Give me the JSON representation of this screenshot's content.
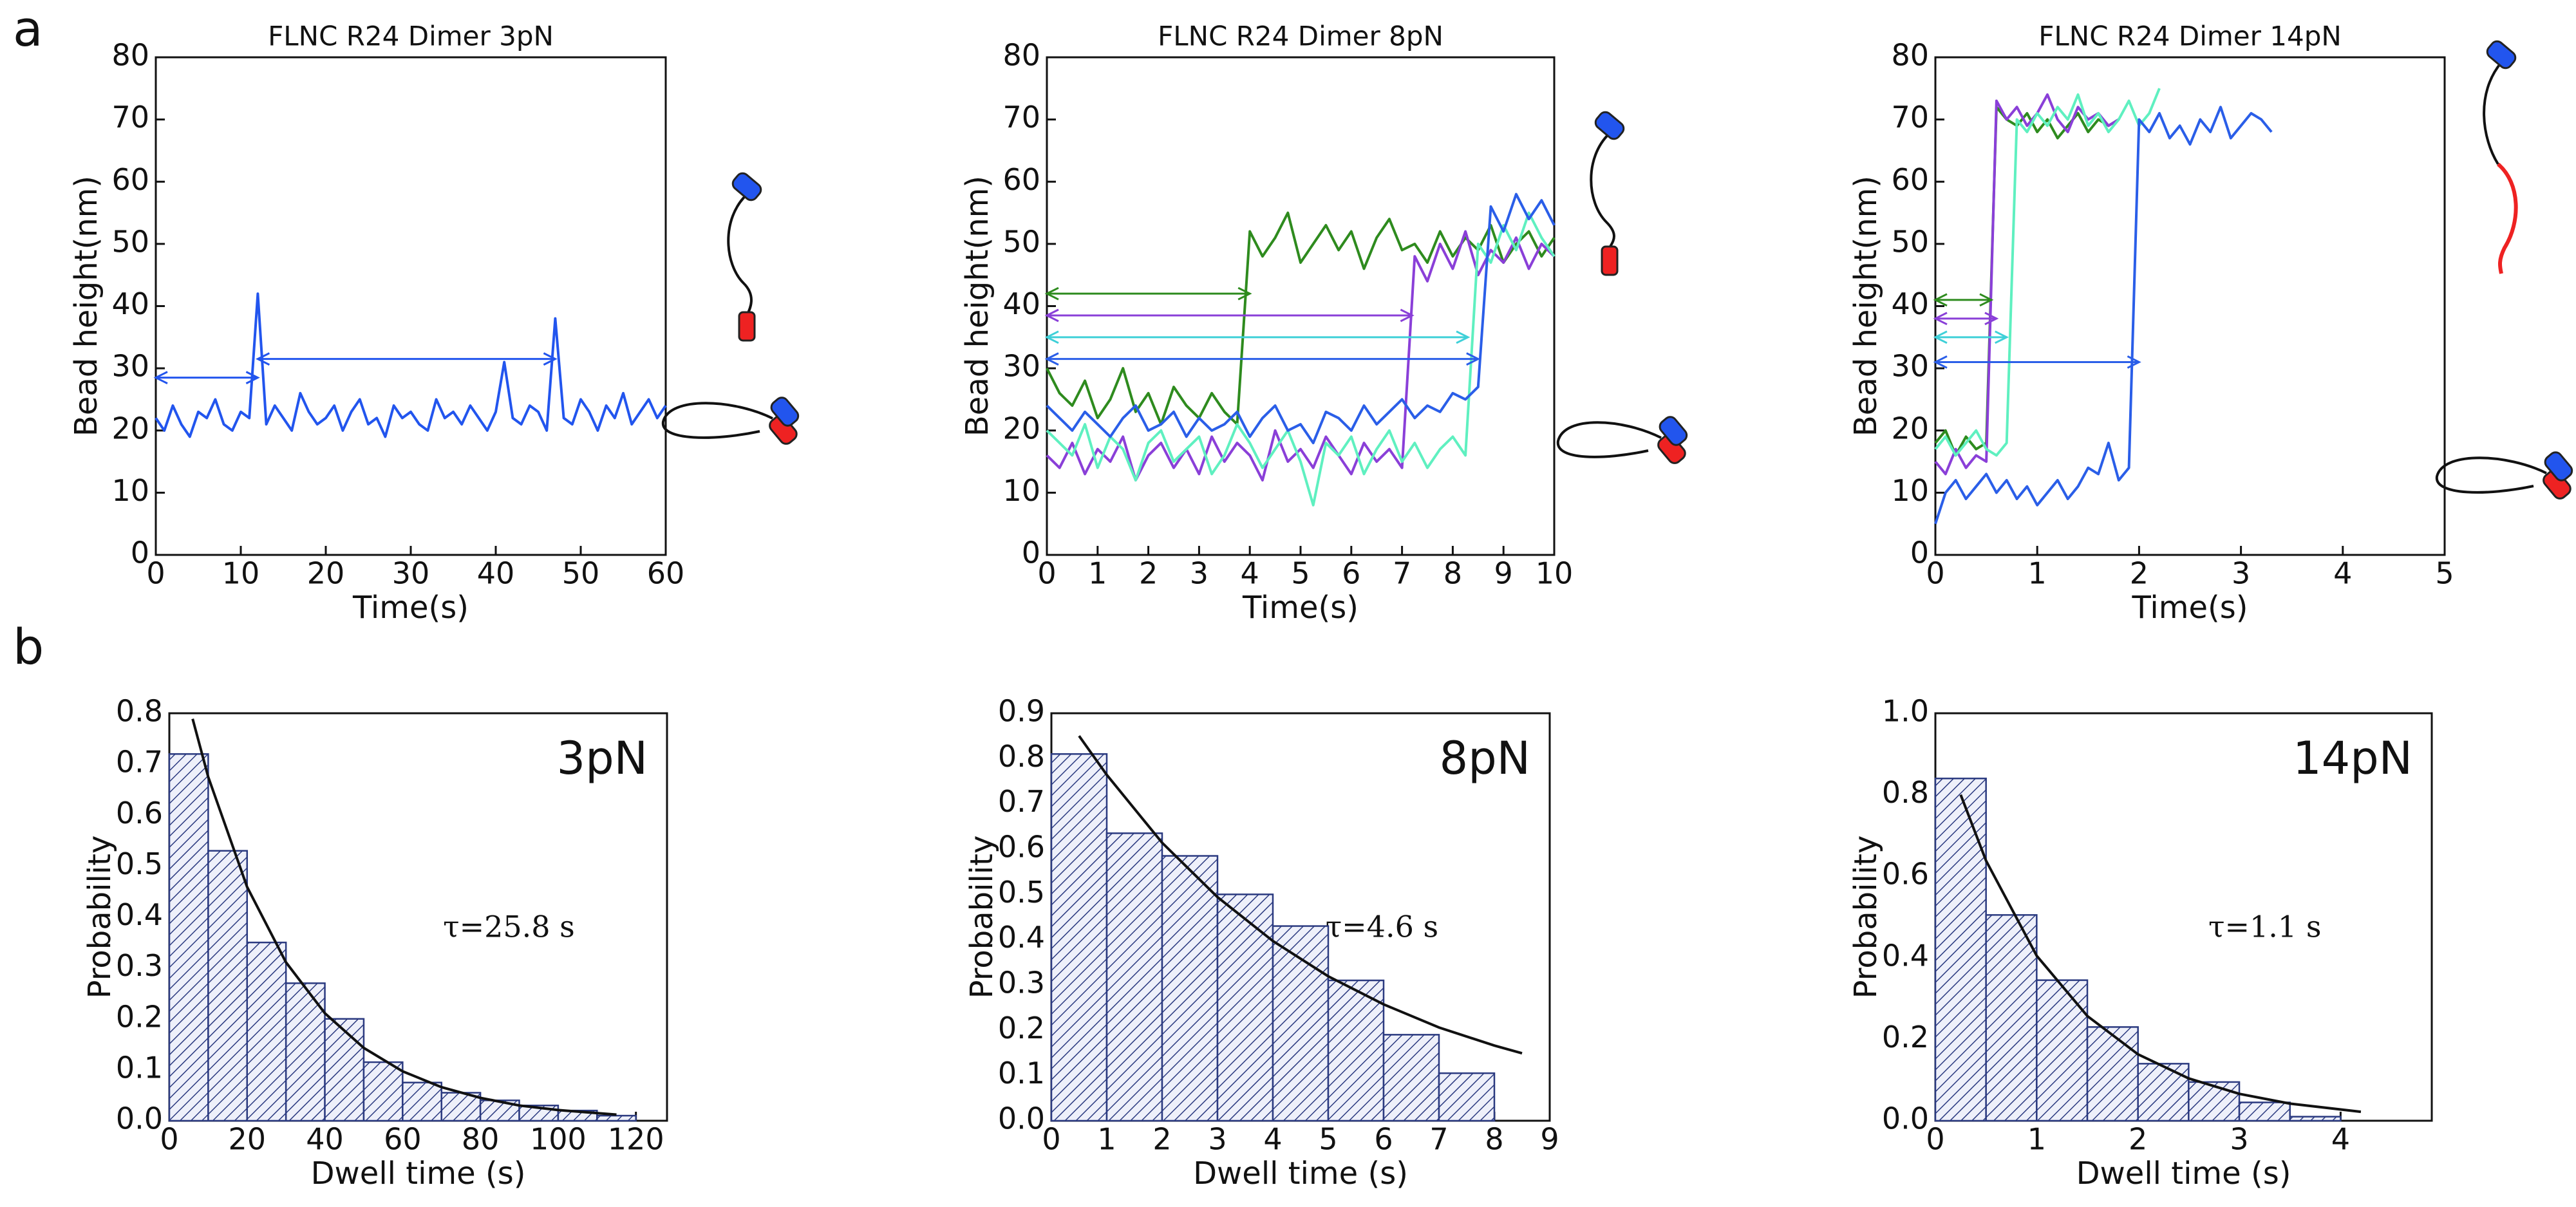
{
  "panel_labels": [
    "a",
    "b"
  ],
  "chart_data": [
    {
      "type": "line",
      "title": "FLNC R24 Dimer 3pN",
      "x_label": "Time(s)",
      "y_label": "Bead height(nm)",
      "xlim": [
        0,
        60
      ],
      "ylim": [
        0,
        80
      ],
      "xticks": [
        0,
        10,
        20,
        30,
        40,
        50,
        60
      ],
      "yticks": [
        0,
        10,
        20,
        30,
        40,
        50,
        60,
        70,
        80
      ],
      "x": [
        0,
        1,
        2,
        3,
        4,
        5,
        6,
        7,
        8,
        9,
        10,
        11,
        12,
        13,
        14,
        15,
        16,
        17,
        18,
        19,
        20,
        21,
        22,
        23,
        24,
        25,
        26,
        27,
        28,
        29,
        30,
        31,
        32,
        33,
        34,
        35,
        36,
        37,
        38,
        39,
        40,
        41,
        42,
        43,
        44,
        45,
        46,
        47,
        48,
        49,
        50,
        51,
        52,
        53,
        54,
        55,
        56,
        57,
        58,
        59,
        60
      ],
      "series": [
        {
          "color": "#2255ee",
          "values": [
            22,
            20,
            24,
            21,
            19,
            23,
            22,
            25,
            21,
            20,
            23,
            22,
            42,
            21,
            24,
            22,
            20,
            26,
            23,
            21,
            22,
            24,
            20,
            23,
            25,
            21,
            22,
            19,
            24,
            22,
            23,
            21,
            20,
            25,
            22,
            23,
            21,
            24,
            22,
            20,
            23,
            31,
            22,
            21,
            24,
            23,
            20,
            38,
            22,
            21,
            25,
            23,
            20,
            24,
            22,
            26,
            21,
            23,
            25,
            22,
            24
          ]
        }
      ],
      "arrows": [
        {
          "x": [
            0,
            12
          ],
          "y": 28.5,
          "color": "#2255ee"
        },
        {
          "x": [
            12,
            47
          ],
          "y": 31.5,
          "color": "#2255ee"
        }
      ]
    },
    {
      "type": "line",
      "title": "FLNC R24 Dimer 8pN",
      "x_label": "Time(s)",
      "y_label": "Bead height(nm)",
      "xlim": [
        0,
        10
      ],
      "ylim": [
        0,
        80
      ],
      "xticks": [
        0,
        1,
        2,
        3,
        4,
        5,
        6,
        7,
        8,
        9,
        10
      ],
      "yticks": [
        0,
        10,
        20,
        30,
        40,
        50,
        60,
        70,
        80
      ],
      "x": [
        0,
        0.25,
        0.5,
        0.75,
        1,
        1.25,
        1.5,
        1.75,
        2,
        2.25,
        2.5,
        2.75,
        3,
        3.25,
        3.5,
        3.75,
        4,
        4.25,
        4.5,
        4.75,
        5,
        5.25,
        5.5,
        5.75,
        6,
        6.25,
        6.5,
        6.75,
        7,
        7.25,
        7.5,
        7.75,
        8,
        8.25,
        8.5,
        8.75,
        9,
        9.25,
        9.5,
        9.75,
        10
      ],
      "series": [
        {
          "color": "#2e8b1e",
          "values": [
            30,
            26,
            24,
            28,
            22,
            25,
            30,
            23,
            26,
            21,
            27,
            24,
            22,
            26,
            23,
            21,
            52,
            48,
            51,
            55,
            47,
            50,
            53,
            49,
            52,
            46,
            51,
            54,
            49,
            50,
            47,
            52,
            48,
            51,
            49,
            53,
            47,
            50,
            52,
            48,
            51
          ]
        },
        {
          "color": "#8a3fd8",
          "values": [
            16,
            14,
            18,
            13,
            17,
            15,
            19,
            12,
            16,
            18,
            14,
            17,
            13,
            19,
            15,
            18,
            16,
            12,
            20,
            15,
            17,
            14,
            19,
            16,
            13,
            18,
            15,
            17,
            14,
            48,
            44,
            50,
            46,
            52,
            45,
            49,
            47,
            51,
            46,
            50,
            48
          ]
        },
        {
          "color": "#5ff0c0",
          "values": [
            20,
            18,
            16,
            21,
            14,
            19,
            17,
            12,
            18,
            20,
            15,
            17,
            19,
            13,
            16,
            21,
            18,
            14,
            17,
            20,
            15,
            8,
            18,
            16,
            19,
            13,
            17,
            20,
            15,
            18,
            14,
            17,
            19,
            16,
            50,
            47,
            53,
            49,
            55,
            51,
            48
          ]
        },
        {
          "color": "#2a5ee8",
          "values": [
            24,
            22,
            20,
            23,
            21,
            19,
            22,
            24,
            20,
            21,
            23,
            19,
            22,
            20,
            21,
            23,
            19,
            22,
            24,
            20,
            21,
            18,
            23,
            22,
            20,
            24,
            21,
            23,
            25,
            22,
            24,
            23,
            26,
            25,
            27,
            56,
            52,
            58,
            54,
            57,
            53
          ]
        }
      ],
      "arrows": [
        {
          "x": [
            0,
            4.0
          ],
          "y": 42,
          "color": "#2e8b1e"
        },
        {
          "x": [
            0,
            7.2
          ],
          "y": 38.5,
          "color": "#8a3fd8"
        },
        {
          "x": [
            0,
            8.3
          ],
          "y": 35,
          "color": "#3fd0d8"
        },
        {
          "x": [
            0,
            8.5
          ],
          "y": 31.5,
          "color": "#2a5ee8"
        }
      ]
    },
    {
      "type": "line",
      "title": "FLNC R24 Dimer 14pN",
      "x_label": "Time(s)",
      "y_label": "Bead height(nm)",
      "xlim": [
        0,
        5
      ],
      "ylim": [
        0,
        80
      ],
      "xticks": [
        0,
        1,
        2,
        3,
        4,
        5
      ],
      "yticks": [
        0,
        10,
        20,
        30,
        40,
        50,
        60,
        70,
        80
      ],
      "x": [
        0,
        0.1,
        0.2,
        0.3,
        0.4,
        0.5,
        0.6,
        0.7,
        0.8,
        0.9,
        1,
        1.1,
        1.2,
        1.3,
        1.4,
        1.5,
        1.6,
        1.7,
        1.8,
        1.9,
        2,
        2.1,
        2.2,
        2.3,
        2.4,
        2.5,
        2.6,
        2.7,
        2.8,
        2.9,
        3,
        3.1,
        3.2,
        3.3
      ],
      "series": [
        {
          "color": "#2e8b1e",
          "values": [
            18,
            20,
            16,
            19,
            17,
            18,
            72,
            70,
            69,
            71,
            68,
            70,
            67,
            69,
            71,
            68,
            70,
            69,
            70,
            null,
            null,
            null,
            null,
            null,
            null,
            null,
            null,
            null,
            null,
            null,
            null,
            null,
            null,
            null
          ]
        },
        {
          "color": "#8a3fd8",
          "values": [
            15,
            13,
            17,
            14,
            16,
            15,
            73,
            70,
            72,
            69,
            71,
            74,
            70,
            68,
            72,
            70,
            71,
            69,
            70,
            null,
            null,
            null,
            null,
            null,
            null,
            null,
            null,
            null,
            null,
            null,
            null,
            null,
            null,
            null
          ]
        },
        {
          "color": "#5ff0c0",
          "values": [
            17,
            19,
            16,
            18,
            20,
            17,
            16,
            18,
            70,
            68,
            71,
            69,
            72,
            70,
            74,
            69,
            71,
            68,
            70,
            73,
            69,
            71,
            75,
            null,
            null,
            null,
            null,
            null,
            null,
            null,
            null,
            null,
            null,
            null
          ]
        },
        {
          "color": "#2a5ee8",
          "values": [
            5,
            10,
            12,
            9,
            11,
            13,
            10,
            12,
            9,
            11,
            8,
            10,
            12,
            9,
            11,
            14,
            13,
            18,
            12,
            14,
            70,
            68,
            71,
            67,
            69,
            66,
            70,
            68,
            72,
            67,
            69,
            71,
            70,
            68
          ]
        }
      ],
      "arrows": [
        {
          "x": [
            0,
            0.55
          ],
          "y": 41,
          "color": "#2e8b1e"
        },
        {
          "x": [
            0,
            0.6
          ],
          "y": 38,
          "color": "#8a3fd8"
        },
        {
          "x": [
            0,
            0.7
          ],
          "y": 35,
          "color": "#3fd0d8"
        },
        {
          "x": [
            0,
            2.0
          ],
          "y": 31,
          "color": "#2a5ee8"
        }
      ]
    },
    {
      "type": "histogram",
      "label": "3pN",
      "annotation": "τ=25.8 s",
      "x_label": "Dwell time (s)",
      "y_label": "Probability",
      "color": "#2b3a80",
      "xlim": [
        0,
        128
      ],
      "ylim": [
        0,
        0.8
      ],
      "xticks": [
        0,
        20,
        40,
        60,
        80,
        100,
        120
      ],
      "yticks": [
        {
          "value": 0,
          "label": "0.0"
        },
        0.1,
        0.2,
        0.3,
        0.4,
        0.5,
        0.6,
        0.7,
        0.8
      ],
      "bins": [
        0,
        10,
        20,
        30,
        40,
        50,
        60,
        70,
        80,
        90,
        100,
        110,
        120
      ],
      "values": [
        0.72,
        0.53,
        0.35,
        0.27,
        0.2,
        0.115,
        0.075,
        0.055,
        0.04,
        0.03,
        0.02,
        0.01
      ],
      "fit": {
        "x": [
          6,
          10,
          20,
          30,
          40,
          50,
          60,
          70,
          80,
          90,
          100,
          115
        ],
        "values": [
          0.789,
          0.675,
          0.459,
          0.311,
          0.211,
          0.143,
          0.097,
          0.066,
          0.045,
          0.03,
          0.021,
          0.012
        ]
      }
    },
    {
      "type": "histogram",
      "label": "8pN",
      "annotation": "τ=4.6 s",
      "x_label": "Dwell time (s)",
      "y_label": "Probability",
      "color": "#2b3a80",
      "xlim": [
        0,
        9
      ],
      "ylim": [
        0,
        0.9
      ],
      "xticks": [
        0,
        1,
        2,
        3,
        4,
        5,
        6,
        7,
        8,
        9
      ],
      "yticks": [
        {
          "value": 0,
          "label": "0.0"
        },
        0.1,
        0.2,
        0.3,
        0.4,
        0.5,
        0.6,
        0.7,
        0.8,
        0.9
      ],
      "bins": [
        0,
        1,
        2,
        3,
        4,
        5,
        6,
        7,
        8
      ],
      "values": [
        0.81,
        0.635,
        0.585,
        0.5,
        0.43,
        0.31,
        0.19,
        0.105
      ],
      "fit": {
        "x": [
          0.5,
          1,
          2,
          3,
          4,
          5,
          6,
          7,
          8,
          8.5
        ],
        "values": [
          0.85,
          0.764,
          0.614,
          0.494,
          0.397,
          0.319,
          0.257,
          0.206,
          0.166,
          0.149
        ]
      }
    },
    {
      "type": "histogram",
      "label": "14pN",
      "annotation": "τ=1.1 s",
      "x_label": "Dwell time (s)",
      "y_label": "Probability",
      "color": "#2b3a80",
      "xlim": [
        0,
        4.9
      ],
      "ylim": [
        0,
        1.0
      ],
      "xticks": [
        0,
        1,
        2,
        3,
        4
      ],
      "yticks": [
        {
          "value": 0,
          "label": "0.0"
        },
        0.2,
        0.4,
        0.6,
        0.8,
        {
          "value": 1.0,
          "label": "1.0"
        }
      ],
      "bins": [
        0,
        0.5,
        1,
        1.5,
        2,
        2.5,
        3,
        3.5,
        4
      ],
      "values": [
        0.84,
        0.505,
        0.345,
        0.23,
        0.14,
        0.095,
        0.045,
        0.01
      ],
      "fit": {
        "x": [
          0.25,
          0.5,
          1,
          1.5,
          2,
          2.5,
          3,
          3.5,
          4.2
        ],
        "values": [
          0.8,
          0.638,
          0.405,
          0.257,
          0.163,
          0.104,
          0.066,
          0.042,
          0.022
        ]
      }
    }
  ]
}
